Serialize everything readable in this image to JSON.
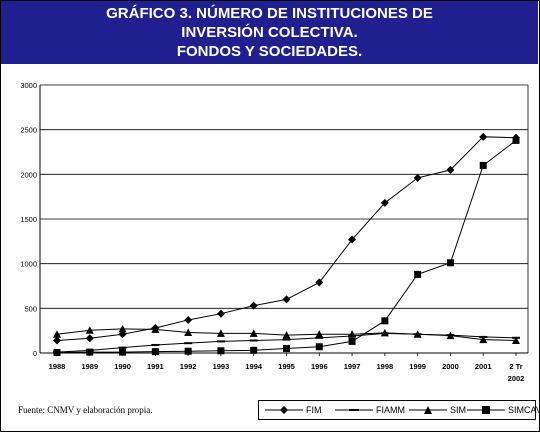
{
  "header": {
    "title_line1": "GRÁFICO 3. NÚMERO DE INSTITUCIONES DE",
    "title_line2": "INVERSIÓN COLECTIVA.",
    "title_line3": "FONDOS Y SOCIEDADES."
  },
  "source_note": "Fuente: CNMV y elaboración propia.",
  "colors": {
    "header_bg": "#1f1f8f",
    "series": "#000000",
    "grid": "#000000"
  },
  "chart_data": {
    "type": "line",
    "title": "GRÁFICO 3. NÚMERO DE INSTITUCIONES DE INVERSIÓN COLECTIVA. FONDOS Y SOCIEDADES.",
    "x": [
      "1988",
      "1989",
      "1990",
      "1991",
      "1992",
      "1993",
      "1994",
      "1995",
      "1996",
      "1997",
      "1998",
      "1999",
      "2000",
      "2001",
      "2 Tr 2002"
    ],
    "x_tick_labels": [
      "1988",
      "1989",
      "1990",
      "1991",
      "1992",
      "1993",
      "1994",
      "1995",
      "1996",
      "1997",
      "1998",
      "1999",
      "2000",
      "2001",
      "2 Tr"
    ],
    "x_tick_extra": "2002",
    "ylim": [
      0,
      3000
    ],
    "yticks": [
      0,
      500,
      1000,
      1500,
      2000,
      2500,
      3000
    ],
    "grid": true,
    "legend_position": "bottom-right",
    "series": [
      {
        "name": "FIM",
        "marker": "diamond",
        "values": [
          140,
          165,
          210,
          280,
          370,
          440,
          530,
          600,
          790,
          1270,
          1680,
          1960,
          2050,
          2420,
          2410
        ]
      },
      {
        "name": "FIAMM",
        "marker": "dash",
        "values": [
          10,
          30,
          60,
          90,
          110,
          130,
          140,
          150,
          170,
          190,
          220,
          210,
          200,
          180,
          170
        ]
      },
      {
        "name": "SIM",
        "marker": "triangle",
        "values": [
          210,
          255,
          270,
          265,
          230,
          220,
          220,
          200,
          210,
          210,
          225,
          210,
          195,
          150,
          140
        ]
      },
      {
        "name": "SIMCAV",
        "marker": "square",
        "values": [
          5,
          10,
          10,
          15,
          20,
          25,
          30,
          50,
          70,
          130,
          360,
          880,
          1010,
          2100,
          2380
        ]
      }
    ]
  }
}
